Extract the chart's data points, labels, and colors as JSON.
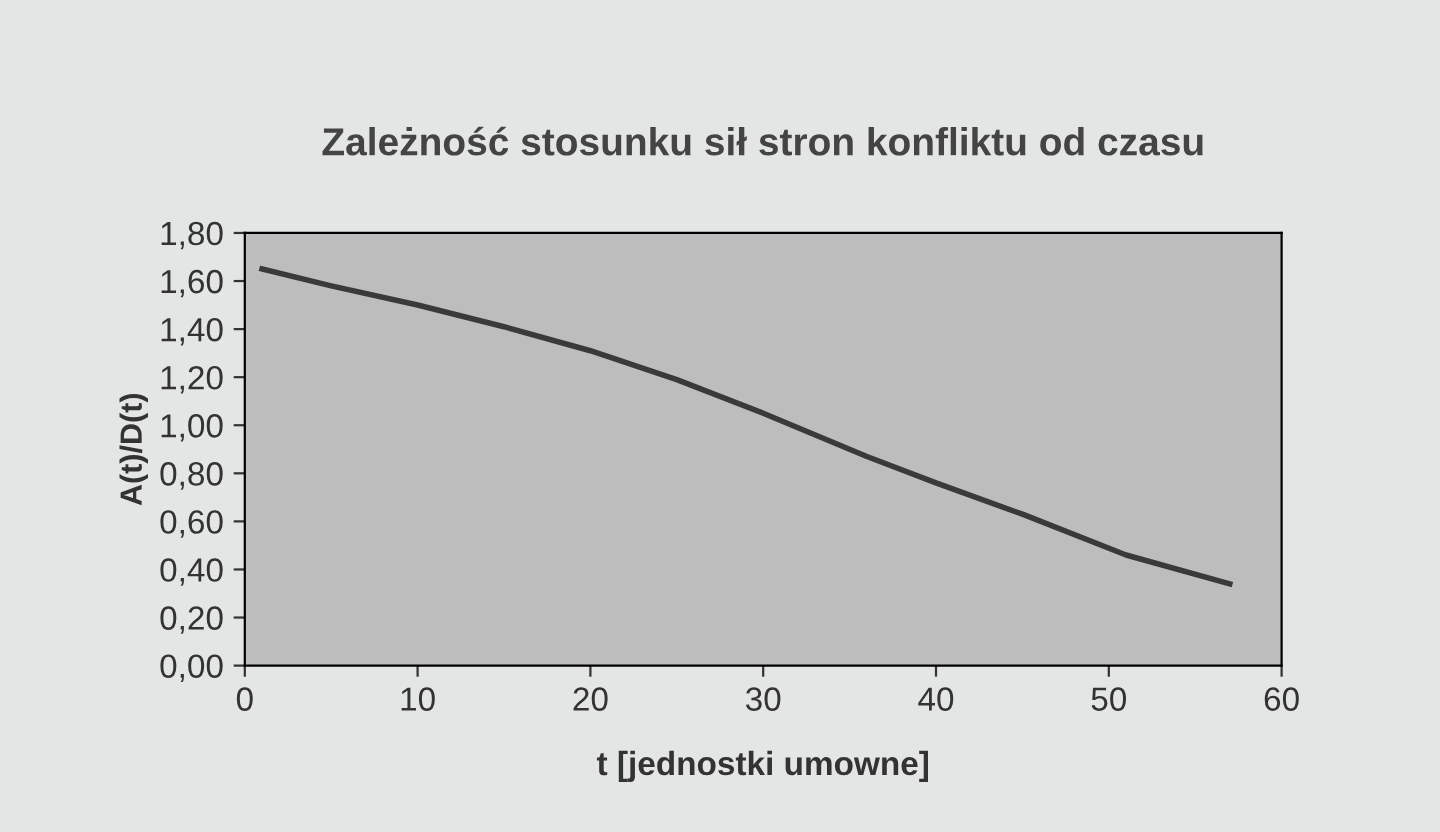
{
  "chart_data": {
    "type": "line",
    "title": "Zależność stosunku sił stron konfliktu od czasu",
    "xlabel": "t [jednostki umowne]",
    "ylabel": "A(t)/D(t)",
    "x": [
      1,
      5,
      10,
      15,
      20,
      25,
      30,
      36,
      40,
      45,
      51,
      57
    ],
    "series": [
      {
        "color": "#3a3a3a",
        "values": [
          1.65,
          1.58,
          1.5,
          1.41,
          1.31,
          1.19,
          1.05,
          0.87,
          0.76,
          0.63,
          0.46,
          0.34
        ]
      }
    ],
    "xlim": [
      0,
      60
    ],
    "xticks": [
      0,
      10,
      20,
      30,
      40,
      50,
      60
    ],
    "ylim": [
      0,
      1.8
    ],
    "yticks": [
      {
        "value": 0,
        "label": "0,00"
      },
      {
        "value": 0.2,
        "label": "0,20"
      },
      {
        "value": 0.4,
        "label": "0,40"
      },
      {
        "value": 0.6,
        "label": "0,60"
      },
      {
        "value": 0.8,
        "label": "0,80"
      },
      {
        "value": 1.0,
        "label": "1,00"
      },
      {
        "value": 1.2,
        "label": "1,20"
      },
      {
        "value": 1.4,
        "label": "1,40"
      },
      {
        "value": 1.6,
        "label": "1,60"
      },
      {
        "value": 1.8,
        "label": "1,80"
      }
    ],
    "grid": false,
    "legend": false,
    "marker": "none",
    "line_style": "solid"
  }
}
